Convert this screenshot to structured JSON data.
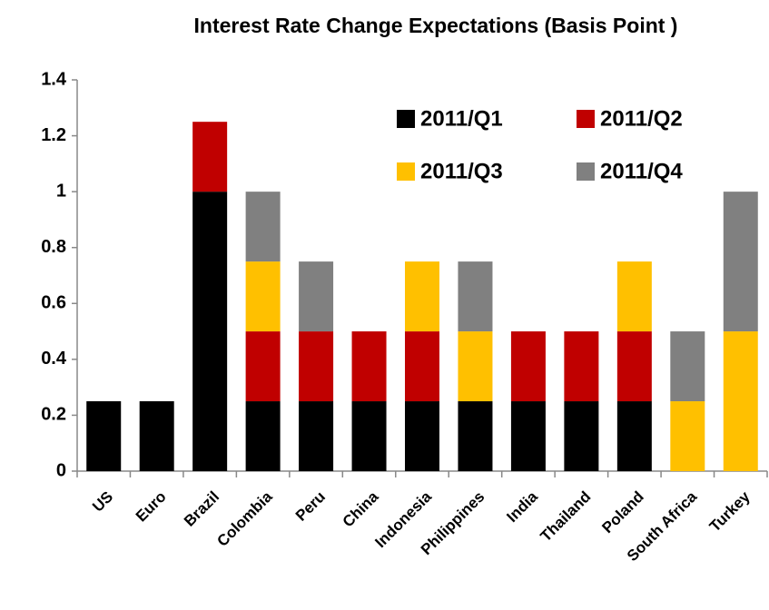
{
  "chart_data": {
    "type": "stacked_bar",
    "title": "Interest Rate Change Expectations (Basis Point )",
    "categories": [
      "US",
      "Euro",
      "Brazil",
      "Colombia",
      "Peru",
      "China",
      "Indonesia",
      "Philippines",
      "India",
      "Thailand",
      "Poland",
      "South Africa",
      "Turkey"
    ],
    "series": [
      {
        "name": "2011/Q1",
        "color": "#000000",
        "values": [
          0.25,
          0.25,
          1.0,
          0.25,
          0.25,
          0.25,
          0.25,
          0.25,
          0.25,
          0.25,
          0.25,
          0,
          0
        ]
      },
      {
        "name": "2011/Q2",
        "color": "#c00000",
        "values": [
          0,
          0,
          0.25,
          0.25,
          0.25,
          0.25,
          0.25,
          0,
          0.25,
          0.25,
          0.25,
          0,
          0
        ]
      },
      {
        "name": "2011/Q3",
        "color": "#ffc000",
        "values": [
          0,
          0,
          0,
          0.25,
          0,
          0,
          0.25,
          0.25,
          0,
          0,
          0.25,
          0.25,
          0.5
        ]
      },
      {
        "name": "2011/Q4",
        "color": "#808080",
        "values": [
          0,
          0,
          0,
          0.25,
          0.25,
          0,
          0,
          0.25,
          0,
          0,
          0,
          0.25,
          0.5
        ]
      }
    ],
    "ylim": [
      0,
      1.4
    ],
    "yticks": [
      0,
      0.2,
      0.4,
      0.6,
      0.8,
      1,
      1.2,
      1.4
    ],
    "grid": false,
    "legend": "upper right"
  }
}
